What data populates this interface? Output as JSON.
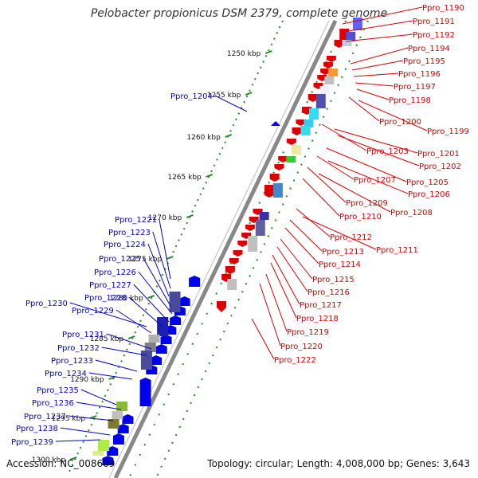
{
  "title": "Pelobacter propionicus DSM 2379, complete genome",
  "footer": {
    "accession": "Accession: NC_008609",
    "topology": "Topology: circular; Length: 4,008,000 bp; Genes: 3,643"
  },
  "colors": {
    "plus_label": "#0000cc",
    "minus_label": "#dd0000",
    "backbone": "#777777",
    "tick": "#228b22"
  },
  "scale_ticks": [
    "1250 kbp",
    "1255 kbp",
    "1260 kbp",
    "1265 kbp",
    "1270 kbp",
    "1275 kbp",
    "1280 kbp",
    "1285 kbp",
    "1290 kbp",
    "1295 kbp",
    "1300 kbp"
  ],
  "minus_genes": [
    "Ppro_1190",
    "Ppro_1191",
    "Ppro_1192",
    "Ppro_1194",
    "Ppro_1195",
    "Ppro_1196",
    "Ppro_1197",
    "Ppro_1198",
    "Ppro_1200",
    "Ppro_1199",
    "Ppro_1203",
    "Ppro_1201",
    "Ppro_1202",
    "Ppro_1205",
    "Ppro_1207",
    "Ppro_1206",
    "Ppro_1209",
    "Ppro_1208",
    "Ppro_1210",
    "Ppro_1212",
    "Ppro_1211",
    "Ppro_1213",
    "Ppro_1214",
    "Ppro_1215",
    "Ppro_1216",
    "Ppro_1217",
    "Ppro_1218",
    "Ppro_1219",
    "Ppro_1220",
    "Ppro_1222"
  ],
  "plus_genes": [
    "Ppro_1204",
    "Ppro_1221",
    "Ppro_1223",
    "Ppro_1224",
    "Ppro_1225",
    "Ppro_1226",
    "Ppro_1227",
    "Ppro_1228",
    "Ppro_1230",
    "Ppro_1229",
    "Ppro_1231",
    "Ppro_1232",
    "Ppro_1233",
    "Ppro_1234",
    "Ppro_1235",
    "Ppro_1236",
    "Ppro_1237",
    "Ppro_1238",
    "Ppro_1239"
  ]
}
